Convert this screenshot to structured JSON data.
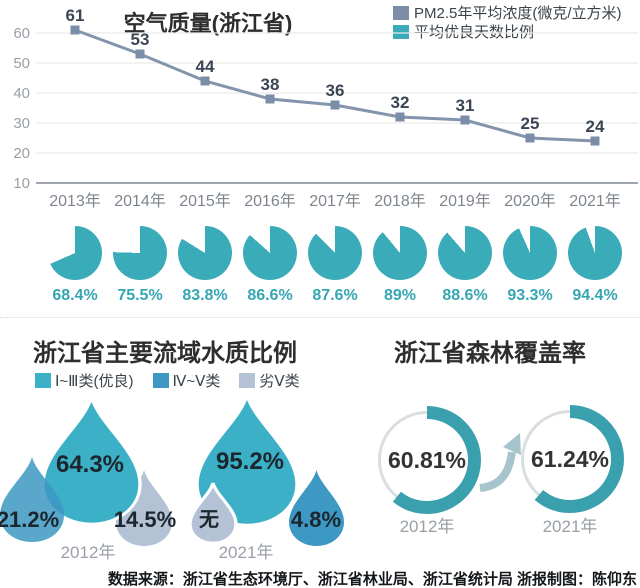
{
  "page": {
    "footer_text": "数据来源：浙江省生态环境厅、浙江省林业局、浙江省统计局  浙报制图：陈仰东"
  },
  "chart_data": [
    {
      "type": "line",
      "title": "空气质量(浙江省)",
      "x": [
        "2013年",
        "2014年",
        "2015年",
        "2016年",
        "2017年",
        "2018年",
        "2019年",
        "2020年",
        "2021年"
      ],
      "series": [
        {
          "name": "PM2.5年平均浓度(微克/立方米)",
          "values": [
            61,
            53,
            44,
            38,
            36,
            32,
            31,
            25,
            24
          ]
        }
      ],
      "yticks": [
        60,
        50,
        40,
        30,
        20,
        10
      ],
      "ylim": [
        10,
        60
      ],
      "grid": true,
      "legend_position": "top-right",
      "line_color": "#8494ac",
      "marker_color": "#7b8da7"
    },
    {
      "type": "pie",
      "name": "平均优良天数比例",
      "categories": [
        "2013年",
        "2014年",
        "2015年",
        "2016年",
        "2017年",
        "2018年",
        "2019年",
        "2020年",
        "2021年"
      ],
      "values": [
        68.4,
        75.5,
        83.8,
        86.6,
        87.6,
        89,
        88.6,
        93.3,
        94.4
      ],
      "labels": [
        "68.4%",
        "75.5%",
        "83.8%",
        "86.6%",
        "87.6%",
        "89%",
        "88.6%",
        "93.3%",
        "94.4%"
      ],
      "color": "#3aabb8"
    },
    {
      "type": "pie",
      "title": "浙江省主要流域水质比例",
      "legend": [
        {
          "label": "Ⅰ~Ⅲ类(优良)",
          "color": "#3bb0c6"
        },
        {
          "label": "Ⅳ~Ⅴ类",
          "color": "#3d98c3"
        },
        {
          "label": "劣Ⅴ类",
          "color": "#b4c2d6"
        }
      ],
      "groups": [
        {
          "category": "2012年",
          "values": [
            {
              "name": "Ⅰ~Ⅲ类(优良)",
              "value": 64.3,
              "label": "64.3%"
            },
            {
              "name": "Ⅳ~Ⅴ类",
              "value": 21.2,
              "label": "21.2%"
            },
            {
              "name": "劣Ⅴ类",
              "value": 14.5,
              "label": "14.5%"
            }
          ]
        },
        {
          "category": "2021年",
          "values": [
            {
              "name": "Ⅰ~Ⅲ类(优良)",
              "value": 95.2,
              "label": "95.2%"
            },
            {
              "name": "Ⅳ~Ⅴ类",
              "value": 4.8,
              "label": "4.8%"
            },
            {
              "name": "劣Ⅴ类",
              "value": 0,
              "label": "无"
            }
          ]
        }
      ]
    },
    {
      "type": "donut",
      "title": "浙江省森林覆盖率",
      "items": [
        {
          "category": "2012年",
          "value": 60.81,
          "label": "60.81%"
        },
        {
          "category": "2021年",
          "value": 61.24,
          "label": "61.24%"
        }
      ],
      "color": "#3aa0ad",
      "track_color": "#d9dee3",
      "arrow_color": "#a6c4cb"
    }
  ]
}
